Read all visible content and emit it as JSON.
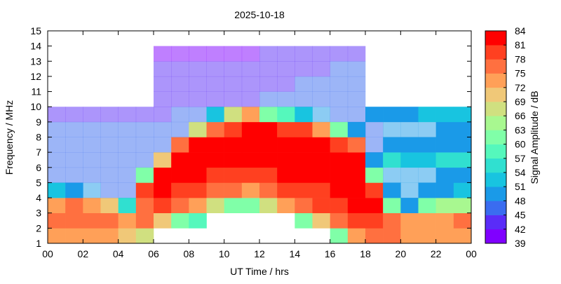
{
  "chart_data": {
    "type": "heatmap",
    "title": "2025-10-18",
    "xlabel": "UT Time / hrs",
    "ylabel": "Frequency / MHz",
    "colorbar_label": "Signal Amplitude / dB",
    "xlim": [
      0,
      24
    ],
    "ylim": [
      1,
      15
    ],
    "x_tick_labels": [
      "00",
      "02",
      "04",
      "06",
      "08",
      "10",
      "12",
      "14",
      "16",
      "18",
      "20",
      "22",
      "00"
    ],
    "y_tick_labels": [
      "1",
      "2",
      "3",
      "4",
      "5",
      "6",
      "7",
      "8",
      "9",
      "10",
      "11",
      "12",
      "13",
      "14",
      "15"
    ],
    "colorbar_ticks": [
      39,
      42,
      45,
      48,
      51,
      54,
      57,
      60,
      63,
      66,
      69,
      72,
      75,
      78,
      81,
      84
    ],
    "colorbar_range": [
      39,
      84
    ],
    "colors": [
      "#8000ff",
      "#5a2cf8",
      "#3a6cf0",
      "#1a9ae8",
      "#18c4e0",
      "#30e0d0",
      "#55f8bc",
      "#80ffa8",
      "#a8f890",
      "#d0e080",
      "#f0c878",
      "#ffa058",
      "#ff7040",
      "#ff4020",
      "#ff0000"
    ],
    "x_hours": [
      0,
      1,
      2,
      3,
      4,
      5,
      6,
      7,
      8,
      9,
      10,
      11,
      12,
      13,
      14,
      15,
      16,
      17,
      18,
      19,
      20,
      21,
      22,
      23
    ],
    "y_bins_mhz": [
      "1-2",
      "2-3",
      "3-4",
      "4-5",
      "5-6",
      "6-7",
      "7-8",
      "8-9",
      "9-10",
      "10-11",
      "11-12",
      "12-13",
      "13-14",
      "14-15"
    ],
    "z_db": [
      [
        72,
        76,
        74,
        52,
        46,
        46,
        45,
        45,
        42,
        null,
        null,
        null,
        null,
        null
      ],
      [
        72,
        76,
        75,
        50,
        46,
        46,
        45,
        45,
        42,
        null,
        null,
        null,
        null,
        null
      ],
      [
        72,
        77,
        74,
        48,
        46,
        46,
        45,
        45,
        42,
        null,
        null,
        null,
        null,
        null
      ],
      [
        72,
        76,
        70,
        46,
        46,
        46,
        45,
        45,
        42,
        null,
        null,
        null,
        null,
        null
      ],
      [
        70,
        74,
        54,
        45,
        46,
        45,
        45,
        45,
        42,
        null,
        null,
        null,
        null,
        null
      ],
      [
        66,
        76,
        77,
        79,
        60,
        46,
        45,
        45,
        43,
        null,
        null,
        null,
        null,
        null
      ],
      [
        null,
        70,
        78,
        81,
        82,
        70,
        46,
        45,
        44,
        42,
        42,
        42,
        41,
        null
      ],
      [
        null,
        62,
        75,
        80,
        82,
        81,
        76,
        46,
        45,
        42,
        42,
        42,
        41,
        null
      ],
      [
        null,
        58,
        72,
        78,
        81,
        82,
        81,
        66,
        45,
        44,
        42,
        42,
        41,
        null
      ],
      [
        null,
        null,
        66,
        76,
        80,
        81,
        81,
        76,
        52,
        43,
        43,
        42,
        41,
        null
      ],
      [
        null,
        null,
        62,
        75,
        80,
        82,
        82,
        80,
        66,
        44,
        43,
        42,
        41,
        null
      ],
      [
        null,
        null,
        60,
        74,
        79,
        82,
        82,
        81,
        72,
        44,
        43,
        42,
        41,
        null
      ],
      [
        null,
        null,
        68,
        76,
        80,
        82,
        82,
        81,
        62,
        45,
        44,
        43,
        42,
        null
      ],
      [
        null,
        null,
        72,
        78,
        81,
        82,
        82,
        80,
        58,
        45,
        44,
        43,
        42,
        null
      ],
      [
        null,
        62,
        75,
        79,
        81,
        82,
        82,
        78,
        52,
        46,
        45,
        44,
        42,
        null
      ],
      [
        null,
        70,
        78,
        80,
        82,
        82,
        82,
        72,
        48,
        46,
        45,
        44,
        42,
        null
      ],
      [
        62,
        76,
        80,
        81,
        82,
        82,
        80,
        60,
        46,
        47,
        46,
        45,
        42,
        null
      ],
      [
        72,
        80,
        81,
        82,
        82,
        81,
        76,
        50,
        46,
        47,
        46,
        45,
        43,
        null
      ],
      [
        76,
        80,
        81,
        78,
        62,
        50,
        47,
        46,
        50,
        null,
        null,
        null,
        null,
        null
      ],
      [
        76,
        76,
        62,
        50,
        48,
        54,
        50,
        48,
        50,
        null,
        null,
        null,
        null,
        null
      ],
      [
        74,
        72,
        50,
        48,
        48,
        52,
        50,
        48,
        50,
        null,
        null,
        null,
        null,
        null
      ],
      [
        74,
        74,
        60,
        50,
        49,
        52,
        50,
        49,
        51,
        null,
        null,
        null,
        null,
        null
      ],
      [
        74,
        74,
        64,
        50,
        50,
        54,
        50,
        50,
        52,
        null,
        null,
        null,
        null,
        null
      ],
      [
        74,
        75,
        64,
        51,
        50,
        54,
        50,
        50,
        53,
        null,
        null,
        null,
        null,
        null
      ]
    ]
  }
}
